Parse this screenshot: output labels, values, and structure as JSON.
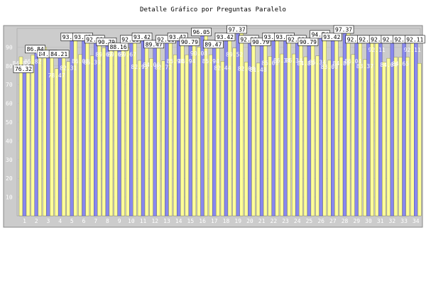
{
  "chart_data": {
    "type": "bar",
    "title": "Detalle Gráfico por Preguntas Paralelo",
    "categories": [
      "1",
      "2",
      "3",
      "4",
      "5",
      "6",
      "7",
      "8",
      "9",
      "10",
      "11",
      "12",
      "13",
      "14",
      "15",
      "16",
      "17",
      "18",
      "19",
      "20",
      "21",
      "22",
      "23",
      "24",
      "25",
      "26",
      "27",
      "28",
      "29",
      "30",
      "31",
      "32",
      "33",
      "34"
    ],
    "ylim": [
      0,
      100
    ],
    "yticks": [
      10,
      20,
      30,
      40,
      50,
      60,
      70,
      80,
      90
    ],
    "colors": {
      "plot_bg": "#cccccc",
      "series_a": "#8888ee",
      "series_b": "#ffff99"
    },
    "series": [
      {
        "values": [
          76.32,
          86.84,
          84.21,
          84.21,
          93.42,
          93.42,
          92.11,
          90.79,
          88.16,
          92.11,
          93.42,
          89.47,
          92.11,
          93.42,
          90.79,
          96.05,
          89.47,
          93.42,
          97.37,
          92.11,
          90.79,
          93.42,
          93.42,
          92.11,
          90.79,
          94.74,
          93.42,
          97.37,
          92.11,
          92.11,
          92.11,
          92.11,
          92.11,
          92.11
        ],
        "labels": [
          "76.32",
          "86.84",
          "84.21",
          "84.21",
          "93.42",
          "93.42",
          "92.11",
          "90.79",
          "88.16",
          "92.11",
          "93.42",
          "89.47",
          "92.11",
          "93.42",
          "90.79",
          "96.05",
          "89.47",
          "93.42",
          "97.37",
          "92.11",
          "90.79",
          "93.42",
          "93.42",
          "92.11",
          "90.79",
          "94.74",
          "93.42",
          "97.37",
          "92.11",
          "92.11",
          "92.11",
          "92.11",
          "92.11",
          "92.11"
        ]
      },
      {
        "values": [
          84.85,
          85.82,
          90.02,
          78.47,
          82.31,
          86.03,
          85.39,
          89.67,
          89.67,
          89.67,
          82.95,
          84.0,
          82.72,
          85.94,
          85.94,
          90.08,
          85.94,
          82.44,
          89.52,
          82.08,
          81.48,
          85.06,
          86.34,
          86.34,
          84.83,
          85.34,
          83.0,
          84.8,
          86.04,
          83.37,
          92.11,
          84.04,
          84.65,
          92.11
        ],
        "labels": [
          "84.85",
          "85.82",
          "90.02",
          "78.47",
          "82.31",
          "86.03",
          "85.39",
          "89.67",
          "89.67",
          "89.67",
          "82.95",
          "84.00",
          "82.72",
          "85.94",
          "85.94",
          "90.08",
          "85.94",
          "82.44",
          "89.52",
          "82.08",
          "81.48",
          "85.06",
          "86.34",
          "86.34",
          "84.83",
          "85.34",
          "83.00",
          "84.80",
          "86.04",
          "83.37",
          "92.11",
          "84.04",
          "84.65",
          "92.11"
        ]
      },
      {
        "values": [
          76.32,
          86.84,
          84.21,
          84.21,
          93.42,
          93.42,
          92.11,
          90.79,
          88.16,
          92.11,
          93.42,
          89.47,
          92.11,
          93.42,
          90.79,
          96.05,
          89.47,
          93.42,
          97.37,
          92.11,
          90.79,
          93.42,
          93.42,
          92.11,
          90.79,
          94.74,
          93.42,
          97.37,
          92.11,
          92.11,
          82.11,
          84.65,
          84.65,
          81.37
        ],
        "labels": [
          "",
          "",
          "",
          "",
          "",
          "",
          "",
          "",
          "",
          "",
          "",
          "",
          "",
          "",
          "",
          "",
          "",
          "",
          "",
          "",
          "",
          "",
          "",
          "",
          "",
          "",
          "",
          "",
          "",
          "",
          "",
          "",
          "",
          ""
        ]
      }
    ]
  }
}
